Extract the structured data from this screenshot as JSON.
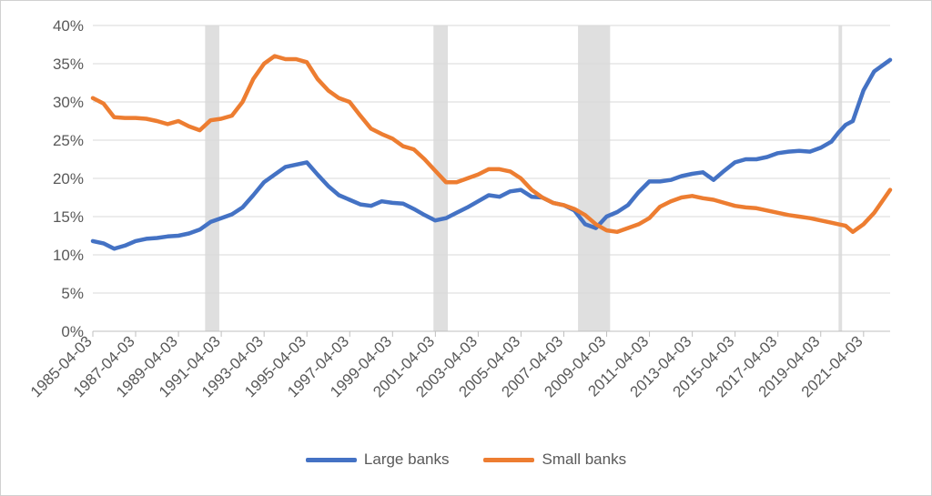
{
  "chart_data": {
    "type": "line",
    "title": "",
    "xlabel": "",
    "ylabel": "",
    "ylim": [
      0,
      0.4
    ],
    "y_ticks": [
      "0%",
      "5%",
      "10%",
      "15%",
      "20%",
      "25%",
      "30%",
      "35%",
      "40%"
    ],
    "x_ticks": [
      "1985-04-03",
      "1987-04-03",
      "1989-04-03",
      "1991-04-03",
      "1993-04-03",
      "1995-04-03",
      "1997-04-03",
      "1999-04-03",
      "2001-04-03",
      "2003-04-03",
      "2005-04-03",
      "2007-04-03",
      "2009-04-03",
      "2011-04-03",
      "2013-04-03",
      "2015-04-03",
      "2017-04-03",
      "2019-04-03",
      "2021-04-03"
    ],
    "xlim": [
      "1985-04-03",
      "2022-06-30"
    ],
    "grid": true,
    "legend_position": "bottom",
    "recession_bands": [
      {
        "start": "1990-07-01",
        "end": "1991-03-01"
      },
      {
        "start": "2001-03-01",
        "end": "2001-11-01"
      },
      {
        "start": "2007-12-01",
        "end": "2009-06-01"
      },
      {
        "start": "2020-02-01",
        "end": "2020-04-01"
      }
    ],
    "series": [
      {
        "name": "Large banks",
        "color": "#4472C4",
        "x": [
          "1985-04-03",
          "1985-10-01",
          "1986-04-01",
          "1986-10-01",
          "1987-04-01",
          "1987-10-01",
          "1988-04-01",
          "1988-10-01",
          "1989-04-01",
          "1989-10-01",
          "1990-04-01",
          "1990-10-01",
          "1991-04-01",
          "1991-10-01",
          "1992-04-01",
          "1992-10-01",
          "1993-04-01",
          "1993-10-01",
          "1994-04-01",
          "1994-10-01",
          "1995-04-01",
          "1995-10-01",
          "1996-04-01",
          "1996-10-01",
          "1997-04-01",
          "1997-10-01",
          "1998-04-01",
          "1998-10-01",
          "1999-04-01",
          "1999-10-01",
          "2000-04-01",
          "2000-10-01",
          "2001-04-01",
          "2001-10-01",
          "2002-04-01",
          "2002-10-01",
          "2003-04-01",
          "2003-10-01",
          "2004-04-01",
          "2004-10-01",
          "2005-04-01",
          "2005-10-01",
          "2006-04-01",
          "2006-10-01",
          "2007-04-01",
          "2007-10-01",
          "2008-04-01",
          "2008-10-01",
          "2009-04-01",
          "2009-10-01",
          "2010-04-01",
          "2010-10-01",
          "2011-04-01",
          "2011-10-01",
          "2012-04-01",
          "2012-10-01",
          "2013-04-01",
          "2013-10-01",
          "2014-04-01",
          "2014-10-01",
          "2015-04-01",
          "2015-10-01",
          "2016-04-01",
          "2016-10-01",
          "2017-04-01",
          "2017-10-01",
          "2018-04-01",
          "2018-10-01",
          "2019-04-01",
          "2019-10-01",
          "2020-02-01",
          "2020-06-01",
          "2020-10-01",
          "2021-04-01",
          "2021-10-01",
          "2022-04-01",
          "2022-06-30"
        ],
        "values": [
          0.118,
          0.115,
          0.108,
          0.112,
          0.118,
          0.121,
          0.122,
          0.124,
          0.125,
          0.128,
          0.133,
          0.143,
          0.148,
          0.153,
          0.162,
          0.178,
          0.195,
          0.205,
          0.215,
          0.218,
          0.221,
          0.205,
          0.19,
          0.178,
          0.172,
          0.166,
          0.164,
          0.17,
          0.168,
          0.167,
          0.16,
          0.152,
          0.145,
          0.148,
          0.155,
          0.162,
          0.17,
          0.178,
          0.176,
          0.183,
          0.185,
          0.176,
          0.175,
          0.168,
          0.165,
          0.158,
          0.14,
          0.135,
          0.15,
          0.156,
          0.165,
          0.182,
          0.196,
          0.196,
          0.198,
          0.203,
          0.206,
          0.208,
          0.198,
          0.21,
          0.221,
          0.225,
          0.225,
          0.228,
          0.233,
          0.235,
          0.236,
          0.235,
          0.24,
          0.248,
          0.26,
          0.27,
          0.275,
          0.315,
          0.34,
          0.35,
          0.355
        ]
      },
      {
        "name": "Small banks",
        "color": "#ED7D31",
        "x": [
          "1985-04-03",
          "1985-10-01",
          "1986-04-01",
          "1986-10-01",
          "1987-04-01",
          "1987-10-01",
          "1988-04-01",
          "1988-10-01",
          "1989-04-01",
          "1989-10-01",
          "1990-04-01",
          "1990-10-01",
          "1991-04-01",
          "1991-10-01",
          "1992-04-01",
          "1992-10-01",
          "1993-04-01",
          "1993-10-01",
          "1994-04-01",
          "1994-10-01",
          "1995-04-01",
          "1995-10-01",
          "1996-04-01",
          "1996-10-01",
          "1997-04-01",
          "1997-10-01",
          "1998-04-01",
          "1998-10-01",
          "1999-04-01",
          "1999-10-01",
          "2000-04-01",
          "2000-10-01",
          "2001-04-01",
          "2001-10-01",
          "2002-04-01",
          "2002-10-01",
          "2003-04-01",
          "2003-10-01",
          "2004-04-01",
          "2004-10-01",
          "2005-04-01",
          "2005-10-01",
          "2006-04-01",
          "2006-10-01",
          "2007-04-01",
          "2007-10-01",
          "2008-04-01",
          "2008-10-01",
          "2009-04-01",
          "2009-10-01",
          "2010-04-01",
          "2010-10-01",
          "2011-04-01",
          "2011-10-01",
          "2012-04-01",
          "2012-10-01",
          "2013-04-01",
          "2013-10-01",
          "2014-04-01",
          "2014-10-01",
          "2015-04-01",
          "2015-10-01",
          "2016-04-01",
          "2016-10-01",
          "2017-04-01",
          "2017-10-01",
          "2018-04-01",
          "2018-10-01",
          "2019-04-01",
          "2019-10-01",
          "2020-02-01",
          "2020-06-01",
          "2020-10-01",
          "2021-04-01",
          "2021-10-01",
          "2022-04-01",
          "2022-06-30"
        ],
        "values": [
          0.305,
          0.298,
          0.28,
          0.279,
          0.279,
          0.278,
          0.275,
          0.271,
          0.275,
          0.268,
          0.263,
          0.276,
          0.278,
          0.282,
          0.3,
          0.33,
          0.35,
          0.36,
          0.356,
          0.356,
          0.352,
          0.33,
          0.315,
          0.305,
          0.3,
          0.282,
          0.265,
          0.258,
          0.252,
          0.242,
          0.238,
          0.225,
          0.21,
          0.195,
          0.195,
          0.2,
          0.205,
          0.212,
          0.212,
          0.209,
          0.2,
          0.185,
          0.175,
          0.168,
          0.165,
          0.16,
          0.152,
          0.14,
          0.132,
          0.13,
          0.135,
          0.14,
          0.148,
          0.163,
          0.17,
          0.175,
          0.177,
          0.174,
          0.172,
          0.168,
          0.164,
          0.162,
          0.161,
          0.158,
          0.155,
          0.152,
          0.15,
          0.148,
          0.145,
          0.142,
          0.14,
          0.138,
          0.13,
          0.14,
          0.155,
          0.175,
          0.185
        ]
      }
    ]
  }
}
